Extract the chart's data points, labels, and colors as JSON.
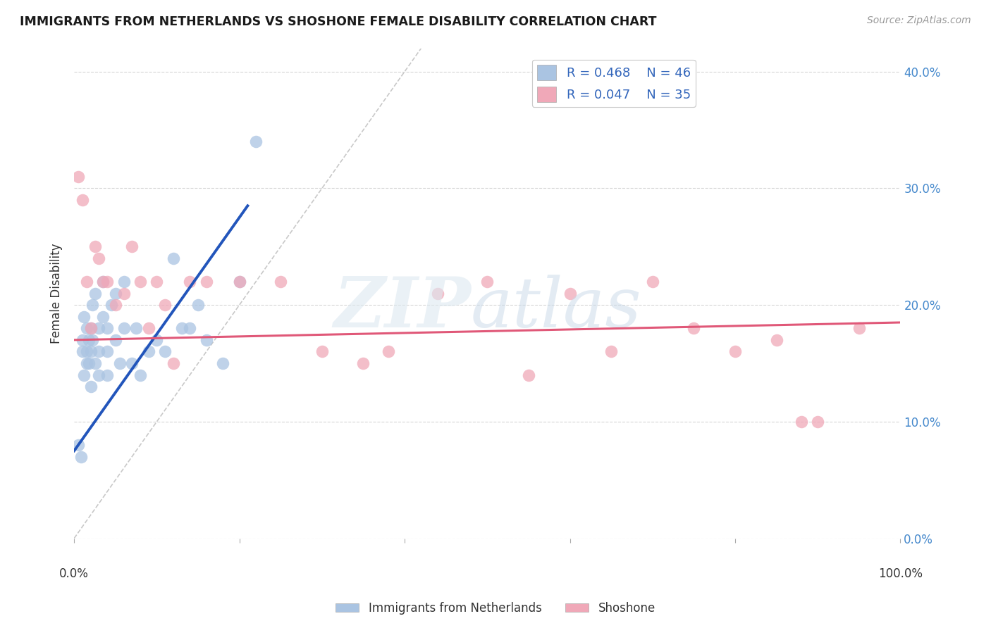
{
  "title": "IMMIGRANTS FROM NETHERLANDS VS SHOSHONE FEMALE DISABILITY CORRELATION CHART",
  "source": "Source: ZipAtlas.com",
  "ylabel": "Female Disability",
  "xlim": [
    0,
    100
  ],
  "ylim": [
    0,
    42
  ],
  "ytick_values": [
    0,
    10,
    20,
    30,
    40
  ],
  "legend_label1": "R = 0.468   N = 46",
  "legend_label2": "R = 0.047   N = 35",
  "legend_name1": "Immigrants from Netherlands",
  "legend_name2": "Shoshone",
  "R1": 0.468,
  "N1": 46,
  "R2": 0.047,
  "N2": 35,
  "color_blue": "#aac4e2",
  "color_pink": "#f0a8b8",
  "line_blue": "#2255bb",
  "line_pink": "#e05878",
  "background": "#ffffff",
  "grid_color": "#cccccc",
  "blue_x": [
    0.5,
    0.8,
    1.0,
    1.0,
    1.2,
    1.2,
    1.5,
    1.5,
    1.5,
    1.8,
    1.8,
    2.0,
    2.0,
    2.0,
    2.2,
    2.2,
    2.5,
    2.5,
    3.0,
    3.0,
    3.0,
    3.5,
    3.5,
    4.0,
    4.0,
    4.0,
    4.5,
    5.0,
    5.0,
    5.5,
    6.0,
    6.0,
    7.0,
    7.5,
    8.0,
    9.0,
    10.0,
    11.0,
    12.0,
    13.0,
    14.0,
    15.0,
    16.0,
    18.0,
    20.0,
    22.0
  ],
  "blue_y": [
    8,
    7,
    16,
    17,
    14,
    19,
    15,
    18,
    16,
    17,
    15,
    13,
    18,
    16,
    20,
    17,
    21,
    15,
    18,
    16,
    14,
    22,
    19,
    18,
    16,
    14,
    20,
    17,
    21,
    15,
    18,
    22,
    15,
    18,
    14,
    16,
    17,
    16,
    24,
    18,
    18,
    20,
    17,
    15,
    22,
    34
  ],
  "pink_x": [
    0.5,
    1.0,
    1.5,
    2.0,
    2.5,
    3.0,
    3.5,
    4.0,
    5.0,
    6.0,
    7.0,
    8.0,
    9.0,
    10.0,
    11.0,
    12.0,
    14.0,
    16.0,
    20.0,
    25.0,
    30.0,
    35.0,
    38.0,
    44.0,
    50.0,
    55.0,
    60.0,
    65.0,
    70.0,
    75.0,
    80.0,
    85.0,
    88.0,
    90.0,
    95.0
  ],
  "pink_y": [
    31,
    29,
    22,
    18,
    25,
    24,
    22,
    22,
    20,
    21,
    25,
    22,
    18,
    22,
    20,
    15,
    22,
    22,
    22,
    22,
    16,
    15,
    16,
    21,
    22,
    14,
    21,
    16,
    22,
    18,
    16,
    17,
    10,
    10,
    18
  ],
  "blue_line_x": [
    0,
    21
  ],
  "blue_line_y": [
    7.5,
    28.5
  ],
  "pink_line_x": [
    0,
    100
  ],
  "pink_line_y": [
    17.0,
    18.5
  ],
  "diag_line_x": [
    0,
    42
  ],
  "diag_line_y": [
    0,
    42
  ]
}
